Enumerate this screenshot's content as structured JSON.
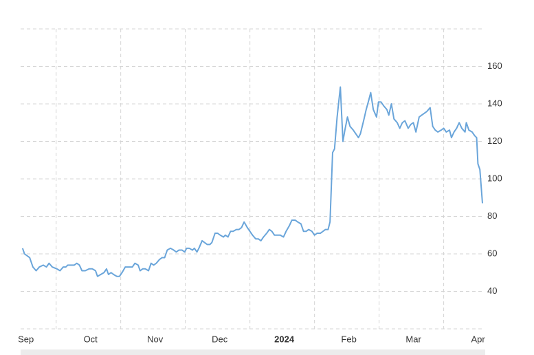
{
  "chart_data": {
    "type": "line",
    "x": [
      -0.02,
      0.01,
      0.09,
      0.14,
      0.19,
      0.24,
      0.3,
      0.35,
      0.39,
      0.44,
      0.51,
      0.56,
      0.61,
      0.65,
      0.68,
      0.72,
      0.78,
      0.82,
      0.86,
      0.9,
      0.95,
      1.01,
      1.06,
      1.11,
      1.14,
      1.19,
      1.24,
      1.28,
      1.31,
      1.35,
      1.39,
      1.44,
      1.48,
      1.52,
      1.57,
      1.63,
      1.68,
      1.72,
      1.77,
      1.8,
      1.84,
      1.88,
      1.93,
      1.97,
      2.01,
      2.05,
      2.1,
      2.14,
      2.18,
      2.22,
      2.27,
      2.32,
      2.36,
      2.4,
      2.45,
      2.49,
      2.52,
      2.56,
      2.61,
      2.64,
      2.68,
      2.71,
      2.76,
      2.8,
      2.84,
      2.88,
      2.91,
      2.96,
      3.0,
      3.04,
      3.09,
      3.12,
      3.16,
      3.2,
      3.24,
      3.29,
      3.33,
      3.37,
      3.41,
      3.46,
      3.5,
      3.54,
      3.59,
      3.63,
      3.67,
      3.71,
      3.76,
      3.8,
      3.84,
      3.88,
      3.93,
      3.97,
      4.02,
      4.06,
      4.11,
      4.15,
      4.2,
      4.24,
      4.29,
      4.33,
      4.37,
      4.41,
      4.46,
      4.5,
      4.54,
      4.59,
      4.63,
      4.67,
      4.71,
      4.74,
      4.78,
      4.81,
      4.85,
      4.9,
      4.94,
      4.97,
      5.01,
      5.05,
      5.1,
      5.14,
      5.18,
      5.21,
      5.26,
      5.3,
      5.34,
      5.37,
      5.41,
      5.46,
      5.49,
      5.53,
      5.57,
      5.62,
      5.65,
      5.69,
      5.73,
      5.78,
      5.82,
      5.86,
      5.9,
      5.95,
      5.99,
      6.03,
      6.07,
      6.12,
      6.16,
      6.2,
      6.24,
      6.29,
      6.33,
      6.37,
      6.41,
      6.46,
      6.5,
      6.54,
      6.59,
      6.62,
      6.66,
      6.7,
      6.74,
      6.78,
      6.83,
      6.85,
      6.89,
      6.94,
      6.98,
      7.01,
      7.03,
      7.06,
      7.1
    ],
    "series": [
      {
        "color": "#6aa5da",
        "values": [
          63,
          60,
          58,
          53,
          51,
          53,
          54,
          53,
          55,
          53,
          52,
          51,
          53,
          53,
          54,
          54,
          54,
          55,
          54,
          51,
          51,
          52,
          52,
          51,
          48,
          49,
          50,
          52,
          49,
          50,
          49,
          48,
          48,
          50,
          53,
          53,
          53,
          55,
          54,
          51,
          52,
          52,
          51,
          55,
          54,
          55,
          57,
          58,
          58,
          62,
          63,
          62,
          61,
          62,
          62,
          61,
          63,
          63,
          62,
          63,
          61,
          63,
          67,
          66,
          65,
          65,
          66,
          71,
          71,
          70,
          69,
          70,
          69,
          72,
          72,
          73,
          73,
          74,
          77,
          74,
          72,
          70,
          68,
          68,
          67,
          69,
          71,
          73,
          72,
          70,
          70,
          70,
          69,
          72,
          75,
          78,
          78,
          77,
          76,
          72,
          72,
          73,
          72,
          70,
          71,
          71,
          72,
          73,
          73,
          77,
          114,
          116,
          133,
          149,
          120,
          126,
          133,
          128,
          126,
          124,
          122,
          124,
          131,
          137,
          142,
          146,
          137,
          133,
          141,
          141,
          139,
          137,
          134,
          140,
          132,
          130,
          127,
          130,
          131,
          127,
          129,
          130,
          125,
          133,
          134,
          135,
          136,
          138,
          128,
          126,
          125,
          126,
          127,
          125,
          126,
          122,
          125,
          127,
          130,
          127,
          125,
          130,
          126,
          125,
          123,
          122,
          108,
          105,
          87
        ]
      }
    ],
    "xlim": [
      -0.05,
      7.1
    ],
    "xticks": [
      {
        "value": 0,
        "label": "Sep"
      },
      {
        "value": 1,
        "label": "Oct"
      },
      {
        "value": 2,
        "label": "Nov"
      },
      {
        "value": 3,
        "label": "Dec"
      },
      {
        "value": 4,
        "label": "2024"
      },
      {
        "value": 5,
        "label": "Feb"
      },
      {
        "value": 6,
        "label": "Mar"
      },
      {
        "value": 7,
        "label": "Apr"
      }
    ],
    "ylim": [
      20,
      180
    ],
    "yticks": [
      40,
      60,
      80,
      100,
      120,
      140,
      160
    ],
    "grid": true
  }
}
